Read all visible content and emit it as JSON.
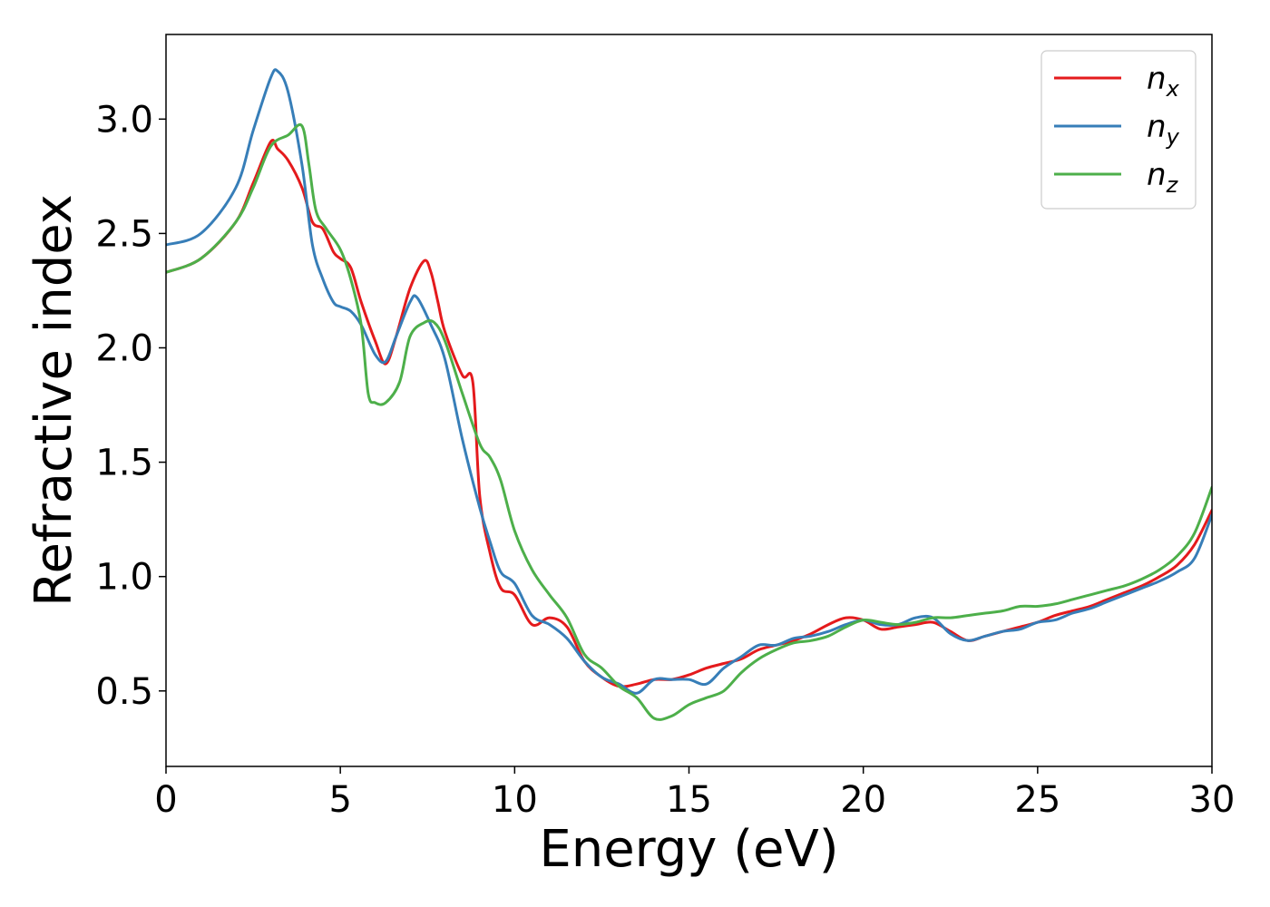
{
  "chart_data": {
    "type": "line",
    "title": "",
    "xlabel": "Energy (eV)",
    "ylabel": "Refractive index",
    "xlim": [
      0,
      30
    ],
    "ylim": [
      0.17,
      3.37
    ],
    "xticks": [
      0,
      5,
      10,
      15,
      20,
      25,
      30
    ],
    "xtick_labels": [
      "0",
      "5",
      "10",
      "15",
      "20",
      "25",
      "30"
    ],
    "yticks": [
      0.5,
      1.0,
      1.5,
      2.0,
      2.5,
      3.0
    ],
    "ytick_labels": [
      "0.5",
      "1.0",
      "1.5",
      "2.0",
      "2.5",
      "3.0"
    ],
    "grid": false,
    "legend_position": "top-right",
    "series": [
      {
        "name": "n",
        "subscript": "x",
        "color": "#e41a1c",
        "x": [
          0,
          1,
          2,
          2.5,
          3,
          3.2,
          3.5,
          3.9,
          4.2,
          4.5,
          4.8,
          5,
          5.3,
          5.6,
          6,
          6.3,
          6.6,
          7,
          7.4,
          7.6,
          7.8,
          8,
          8.5,
          8.8,
          9,
          9.3,
          9.6,
          10,
          10.5,
          11,
          11.5,
          12,
          12.5,
          13,
          13.5,
          14,
          14.5,
          15,
          15.5,
          16,
          16.5,
          17,
          17.5,
          18,
          18.5,
          19,
          19.5,
          20,
          20.5,
          21,
          21.5,
          22,
          22.5,
          23,
          23.5,
          24,
          24.5,
          25,
          25.5,
          26,
          26.5,
          27,
          27.5,
          28,
          28.5,
          29,
          29.5,
          30
        ],
        "y": [
          2.33,
          2.39,
          2.55,
          2.72,
          2.9,
          2.87,
          2.82,
          2.7,
          2.55,
          2.52,
          2.42,
          2.39,
          2.35,
          2.2,
          2.03,
          1.93,
          2.05,
          2.26,
          2.38,
          2.33,
          2.2,
          2.07,
          1.88,
          1.85,
          1.35,
          1.1,
          0.95,
          0.92,
          0.79,
          0.82,
          0.78,
          0.63,
          0.56,
          0.52,
          0.53,
          0.55,
          0.55,
          0.57,
          0.6,
          0.62,
          0.64,
          0.68,
          0.7,
          0.72,
          0.75,
          0.79,
          0.82,
          0.81,
          0.77,
          0.78,
          0.79,
          0.8,
          0.76,
          0.72,
          0.74,
          0.76,
          0.78,
          0.8,
          0.83,
          0.85,
          0.87,
          0.9,
          0.93,
          0.96,
          1.0,
          1.05,
          1.14,
          1.29
        ]
      },
      {
        "name": "n",
        "subscript": "y",
        "color": "#377eb8",
        "x": [
          0,
          1,
          2,
          2.5,
          3,
          3.2,
          3.5,
          3.9,
          4.2,
          4.5,
          4.8,
          5,
          5.3,
          5.6,
          6,
          6.3,
          6.6,
          7,
          7.2,
          7.6,
          8,
          8.5,
          9,
          9.3,
          9.6,
          10,
          10.5,
          11,
          11.5,
          12,
          12.5,
          13,
          13.5,
          14,
          14.5,
          15,
          15.5,
          16,
          16.5,
          17,
          17.5,
          18,
          18.5,
          19,
          19.5,
          20,
          20.5,
          21,
          21.5,
          22,
          22.5,
          23,
          23.5,
          24,
          24.5,
          25,
          25.5,
          26,
          26.5,
          27,
          27.5,
          28,
          28.5,
          29,
          29.5,
          30
        ],
        "y": [
          2.45,
          2.5,
          2.7,
          2.95,
          3.18,
          3.21,
          3.12,
          2.8,
          2.45,
          2.3,
          2.2,
          2.18,
          2.16,
          2.1,
          1.97,
          1.94,
          2.05,
          2.2,
          2.22,
          2.1,
          1.95,
          1.6,
          1.3,
          1.15,
          1.02,
          0.97,
          0.83,
          0.79,
          0.73,
          0.63,
          0.56,
          0.53,
          0.49,
          0.55,
          0.55,
          0.55,
          0.53,
          0.6,
          0.65,
          0.7,
          0.7,
          0.73,
          0.74,
          0.76,
          0.79,
          0.81,
          0.79,
          0.79,
          0.82,
          0.82,
          0.75,
          0.72,
          0.74,
          0.76,
          0.77,
          0.8,
          0.81,
          0.84,
          0.86,
          0.89,
          0.92,
          0.95,
          0.98,
          1.02,
          1.08,
          1.27
        ]
      },
      {
        "name": "n",
        "subscript": "z",
        "color": "#4daf4a",
        "x": [
          0,
          1,
          2,
          2.5,
          3,
          3.5,
          3.9,
          4.1,
          4.3,
          4.6,
          5,
          5.3,
          5.6,
          5.8,
          6,
          6.3,
          6.7,
          7,
          7.4,
          7.7,
          8,
          8.5,
          9,
          9.3,
          9.6,
          10,
          10.5,
          11,
          11.5,
          12,
          12.5,
          13,
          13.5,
          14,
          14.5,
          15,
          15.5,
          16,
          16.5,
          17,
          17.5,
          18,
          18.5,
          19,
          19.5,
          20,
          20.5,
          21,
          21.5,
          22,
          22.5,
          23,
          23.5,
          24,
          24.5,
          25,
          25.5,
          26,
          26.5,
          27,
          27.5,
          28,
          28.5,
          29,
          29.5,
          30
        ],
        "y": [
          2.33,
          2.39,
          2.55,
          2.7,
          2.88,
          2.93,
          2.97,
          2.8,
          2.6,
          2.52,
          2.43,
          2.3,
          2.1,
          1.8,
          1.76,
          1.76,
          1.85,
          2.05,
          2.11,
          2.11,
          2.03,
          1.8,
          1.58,
          1.52,
          1.42,
          1.2,
          1.03,
          0.92,
          0.82,
          0.66,
          0.6,
          0.52,
          0.47,
          0.38,
          0.39,
          0.44,
          0.47,
          0.5,
          0.58,
          0.64,
          0.68,
          0.71,
          0.72,
          0.74,
          0.78,
          0.81,
          0.8,
          0.79,
          0.8,
          0.82,
          0.82,
          0.83,
          0.84,
          0.85,
          0.87,
          0.87,
          0.88,
          0.9,
          0.92,
          0.94,
          0.96,
          0.99,
          1.03,
          1.09,
          1.19,
          1.39
        ]
      }
    ]
  }
}
